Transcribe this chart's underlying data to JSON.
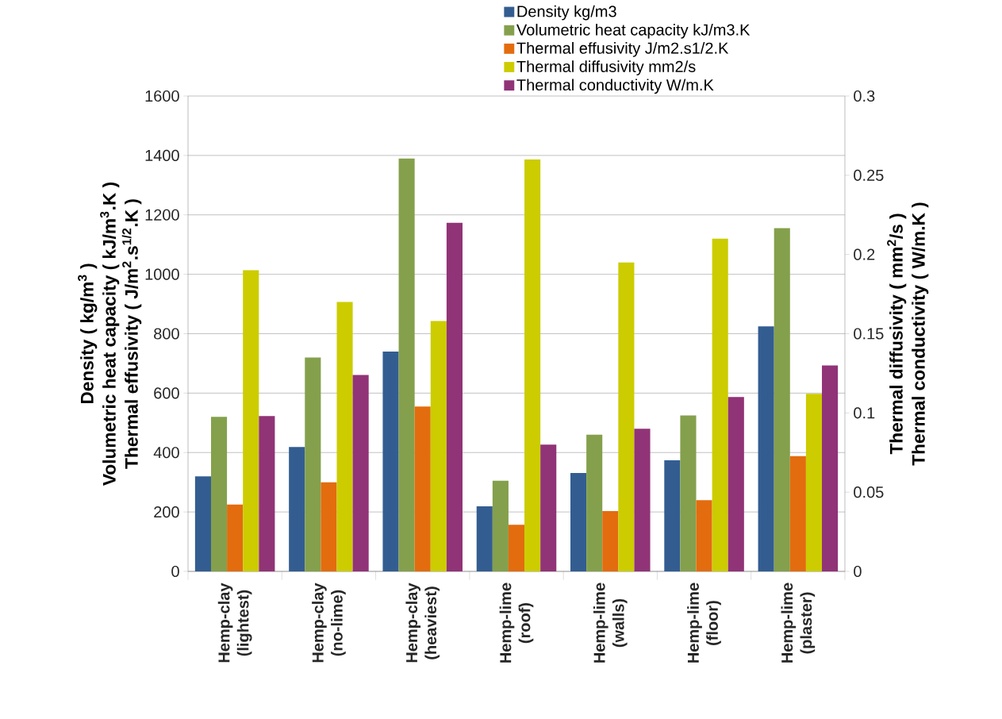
{
  "chart_data": {
    "type": "bar",
    "categories": [
      "Hemp-clay (lightest)",
      "Hemp-clay (no-lime)",
      "Hemp-clay (heaviest)",
      "Hemp-lime (roof)",
      "Hemp-lime (walls)",
      "Hemp-lime (floor)",
      "Hemp-lime (plaster)"
    ],
    "series": [
      {
        "name": "Density kg/m3",
        "color": "#335d91",
        "values": [
          320,
          419,
          740,
          219,
          331,
          374,
          825
        ]
      },
      {
        "name": "Volumetric heat capacity kJ/m3.K",
        "color": "#84a04c",
        "values": [
          520,
          720,
          1390,
          305,
          460,
          525,
          1155
        ]
      },
      {
        "name": "Thermal effusivity J/m2.s1/2.K",
        "color": "#e36c0e",
        "values": [
          225,
          300,
          555,
          157,
          203,
          240,
          388
        ]
      },
      {
        "name": "Thermal diffusivity mm2/s",
        "color": "#cccc00",
        "axis": "y2",
        "values": [
          0.19,
          0.17,
          0.158,
          0.26,
          0.195,
          0.21,
          0.112
        ]
      },
      {
        "name": "Thermal conductivity W/m.K",
        "color": "#913377",
        "axis": "y2",
        "values": [
          0.098,
          0.124,
          0.22,
          0.08,
          0.09,
          0.11,
          0.13
        ]
      }
    ],
    "ylabel": [
      "Density ( kg/m$^{3}$ )",
      "Volumetric heat capacity ( kJ/m$^{3}$.K )",
      "Thermal effusivity ( J/m$^{2}$.s$^{1/2}$.K )"
    ],
    "y2label": [
      "Thermal diffusivity ( mm$^{2}$/s )",
      "Thermal conductivity ( W/m.K )"
    ],
    "ylim": [
      0,
      1600
    ],
    "yticks": [
      0,
      200,
      400,
      600,
      800,
      1000,
      1200,
      1400,
      1600
    ],
    "y2lim": [
      0,
      0.3
    ],
    "y2ticks": [
      0,
      0.05,
      0.1,
      0.15,
      0.2,
      0.25,
      0.3
    ],
    "grid": "y",
    "legend": "top"
  }
}
